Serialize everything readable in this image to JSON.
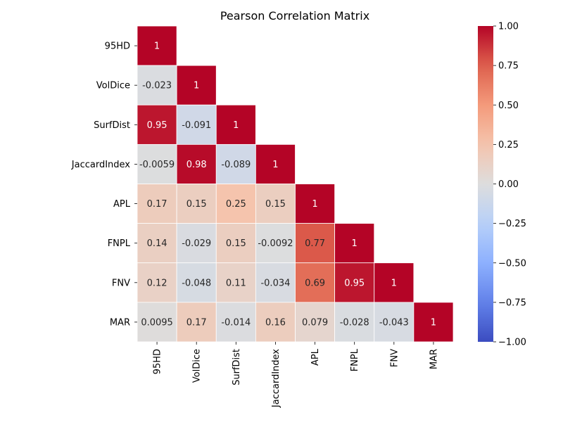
{
  "chart_data": {
    "type": "heatmap",
    "title": "Pearson Correlation Matrix",
    "xlabel": "",
    "ylabel": "",
    "labels": [
      "95HD",
      "VolDice",
      "SurfDist",
      "JaccardIndex",
      "APL",
      "FNPL",
      "FNV",
      "MAR"
    ],
    "matrix": [
      [
        1,
        null,
        null,
        null,
        null,
        null,
        null,
        null
      ],
      [
        -0.023,
        1,
        null,
        null,
        null,
        null,
        null,
        null
      ],
      [
        0.95,
        -0.091,
        1,
        null,
        null,
        null,
        null,
        null
      ],
      [
        -0.0059,
        0.98,
        -0.089,
        1,
        null,
        null,
        null,
        null
      ],
      [
        0.17,
        0.15,
        0.25,
        0.15,
        1,
        null,
        null,
        null
      ],
      [
        0.14,
        -0.029,
        0.15,
        -0.0092,
        0.77,
        1,
        null,
        null
      ],
      [
        0.12,
        -0.048,
        0.11,
        -0.034,
        0.69,
        0.95,
        1,
        null
      ],
      [
        0.0095,
        0.17,
        -0.014,
        0.16,
        0.079,
        -0.028,
        -0.043,
        1
      ]
    ],
    "mask": "upper-triangle",
    "colormap": "coolwarm",
    "vmin": -1,
    "vmax": 1,
    "colorbar_ticks": [
      "1.00",
      "0.75",
      "0.50",
      "0.25",
      "0.00",
      "−0.25",
      "−0.50",
      "−0.75",
      "−1.00"
    ],
    "colorbar_tick_values": [
      1,
      0.75,
      0.5,
      0.25,
      0,
      -0.25,
      -0.5,
      -0.75,
      -1
    ],
    "grid": false,
    "cell_border_color": "#ffffff"
  }
}
